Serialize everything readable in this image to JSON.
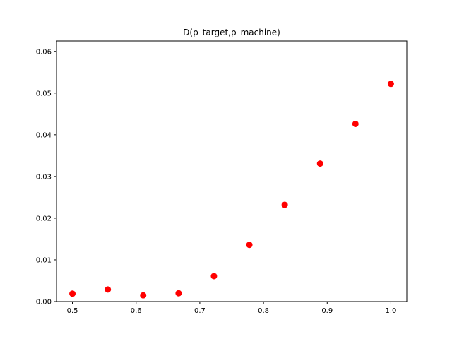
{
  "chart_data": {
    "type": "scatter",
    "title": "D(p_target,p_machine)",
    "xlabel": "",
    "ylabel": "",
    "xlim": [
      0.475,
      1.025
    ],
    "ylim": [
      0.0,
      0.0625
    ],
    "grid": false,
    "x_ticks": [
      0.5,
      0.6,
      0.7,
      0.8,
      0.9,
      1.0
    ],
    "x_tick_labels": [
      "0.5",
      "0.6",
      "0.7",
      "0.8",
      "0.9",
      "1.0"
    ],
    "y_ticks": [
      0.0,
      0.01,
      0.02,
      0.03,
      0.04,
      0.05,
      0.06
    ],
    "y_tick_labels": [
      "0.00",
      "0.01",
      "0.02",
      "0.03",
      "0.04",
      "0.05",
      "0.06"
    ],
    "series": [
      {
        "color": "#ff0000",
        "x": [
          0.5,
          0.5556,
          0.6111,
          0.6667,
          0.7222,
          0.7778,
          0.8333,
          0.8889,
          0.9444,
          1.0
        ],
        "y": [
          0.0019,
          0.0029,
          0.0015,
          0.002,
          0.0061,
          0.0136,
          0.0232,
          0.0331,
          0.0426,
          0.0522
        ]
      }
    ]
  }
}
